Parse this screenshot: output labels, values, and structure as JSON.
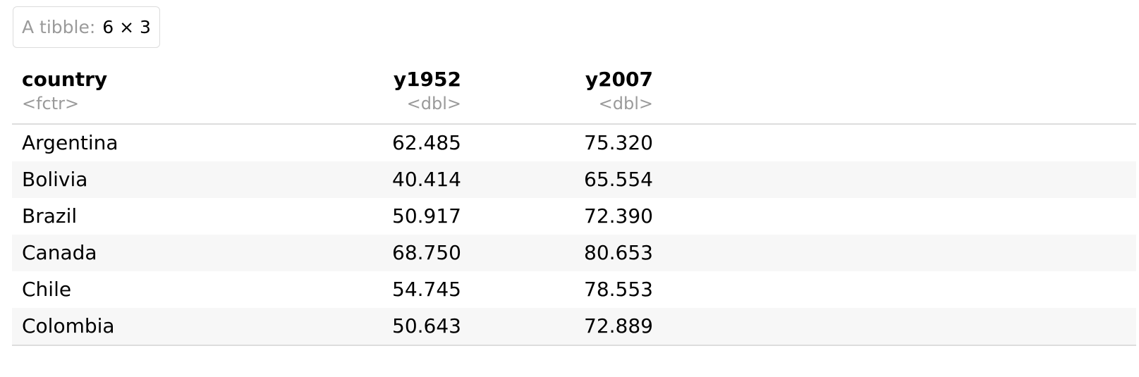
{
  "meta": {
    "label": "A tibble:",
    "dims": "6 × 3"
  },
  "columns": [
    {
      "name": "country",
      "type": "<fctr>"
    },
    {
      "name": "y1952",
      "type": "<dbl>"
    },
    {
      "name": "y2007",
      "type": "<dbl>"
    }
  ],
  "rows": [
    {
      "country": "Argentina",
      "y1952": "62.485",
      "y2007": "75.320"
    },
    {
      "country": "Bolivia",
      "y1952": "40.414",
      "y2007": "65.554"
    },
    {
      "country": "Brazil",
      "y1952": "50.917",
      "y2007": "72.390"
    },
    {
      "country": "Canada",
      "y1952": "68.750",
      "y2007": "80.653"
    },
    {
      "country": "Chile",
      "y1952": "54.745",
      "y2007": "78.553"
    },
    {
      "country": "Colombia",
      "y1952": "50.643",
      "y2007": "72.889"
    }
  ]
}
